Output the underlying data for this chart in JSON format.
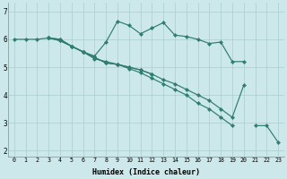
{
  "xlabel": "Humidex (Indice chaleur)",
  "ylabel": "",
  "bg_color": "#cce8ea",
  "grid_color": "#aacdd0",
  "line_color": "#2e7d6e",
  "xlim": [
    -0.5,
    23.5
  ],
  "ylim": [
    1.8,
    7.3
  ],
  "xticks": [
    0,
    1,
    2,
    3,
    4,
    5,
    6,
    7,
    8,
    9,
    10,
    11,
    12,
    13,
    14,
    15,
    16,
    17,
    18,
    19,
    20,
    21,
    22,
    23
  ],
  "yticks": [
    2,
    3,
    4,
    5,
    6,
    7
  ],
  "lines": [
    {
      "segments": [
        {
          "x": [
            0,
            1,
            2,
            3,
            4,
            5,
            6,
            7,
            8,
            9,
            10,
            11,
            12,
            13,
            14,
            15,
            16,
            17,
            18,
            19,
            20
          ],
          "y": [
            6.0,
            6.0,
            6.0,
            6.05,
            6.0,
            5.75,
            5.55,
            5.4,
            5.9,
            6.65,
            6.5,
            6.2,
            6.4,
            6.6,
            6.15,
            6.1,
            6.0,
            5.85,
            5.9,
            5.2,
            5.2
          ]
        }
      ]
    },
    {
      "segments": [
        {
          "x": [
            3,
            4,
            5,
            6,
            7,
            8,
            9,
            10,
            11,
            12
          ],
          "y": [
            6.05,
            5.95,
            5.75,
            5.55,
            5.35,
            5.15,
            5.1,
            5.0,
            4.9,
            4.75
          ]
        }
      ]
    },
    {
      "segments": [
        {
          "x": [
            3,
            4,
            5,
            6,
            7,
            8,
            9,
            10,
            11,
            12,
            13,
            14,
            15,
            16,
            17,
            18,
            19
          ],
          "y": [
            6.05,
            6.0,
            5.75,
            5.55,
            5.3,
            5.2,
            5.1,
            4.95,
            4.8,
            4.6,
            4.4,
            4.2,
            4.0,
            3.7,
            3.5,
            3.2,
            2.9
          ]
        }
      ]
    },
    {
      "segments": [
        {
          "x": [
            3,
            4,
            5,
            6,
            7,
            8,
            9,
            10,
            11,
            12,
            13,
            14,
            15,
            16,
            17,
            18,
            19,
            20
          ],
          "y": [
            6.05,
            5.95,
            5.75,
            5.55,
            5.35,
            5.15,
            5.1,
            5.0,
            4.9,
            4.75,
            4.55,
            4.4,
            4.2,
            4.0,
            3.8,
            3.5,
            3.2,
            4.35
          ]
        },
        {
          "x": [
            21,
            22,
            23
          ],
          "y": [
            2.9,
            2.9,
            2.3
          ]
        }
      ]
    }
  ]
}
